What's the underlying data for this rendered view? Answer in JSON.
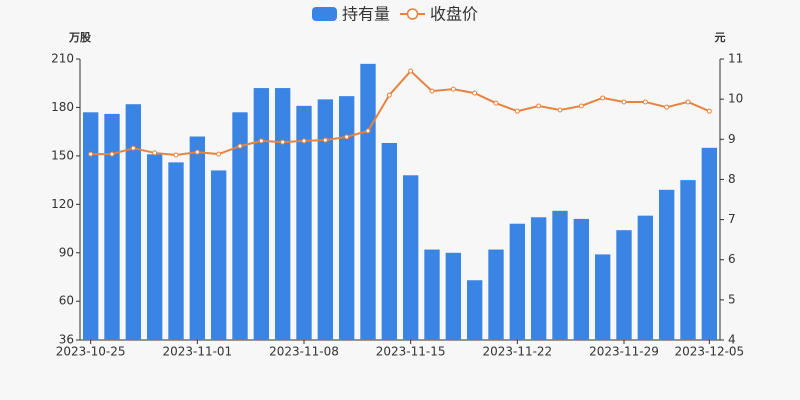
{
  "chart_data": {
    "type": "bar-line",
    "y_label": "万股",
    "y2_label": "元",
    "categories": [
      "2023-10-25",
      null,
      null,
      null,
      null,
      "2023-11-01",
      null,
      null,
      null,
      null,
      "2023-11-08",
      null,
      null,
      null,
      null,
      "2023-11-15",
      null,
      null,
      null,
      null,
      "2023-11-22",
      null,
      null,
      null,
      null,
      "2023-11-29",
      null,
      null,
      null,
      "2023-12-05"
    ],
    "series": [
      {
        "name": "持有量",
        "type": "bar",
        "color": "#3a84e3",
        "axis": "y",
        "values": [
          177,
          176,
          182,
          151,
          146,
          162,
          141,
          177,
          192,
          192,
          181,
          185,
          187,
          207,
          158,
          138,
          92,
          90,
          73,
          92,
          108,
          112,
          116,
          111,
          89,
          104,
          113,
          129,
          135,
          155
        ]
      },
      {
        "name": "收盘价",
        "type": "line",
        "color": "#e8823f",
        "axis": "y2",
        "values": [
          8.63,
          8.63,
          8.78,
          8.66,
          8.61,
          8.68,
          8.63,
          8.83,
          8.96,
          8.93,
          8.96,
          8.98,
          9.06,
          9.21,
          10.1,
          10.7,
          10.2,
          10.25,
          10.15,
          9.9,
          9.7,
          9.83,
          9.73,
          9.83,
          10.03,
          9.93,
          9.93,
          9.8,
          9.93,
          9.7
        ]
      }
    ],
    "ylim": [
      36,
      210
    ],
    "yticks": [
      36,
      60,
      90,
      120,
      150,
      180,
      210
    ],
    "y2lim": [
      4,
      11
    ],
    "y2ticks": [
      4,
      5,
      6,
      7,
      8,
      9,
      10,
      11
    ]
  }
}
